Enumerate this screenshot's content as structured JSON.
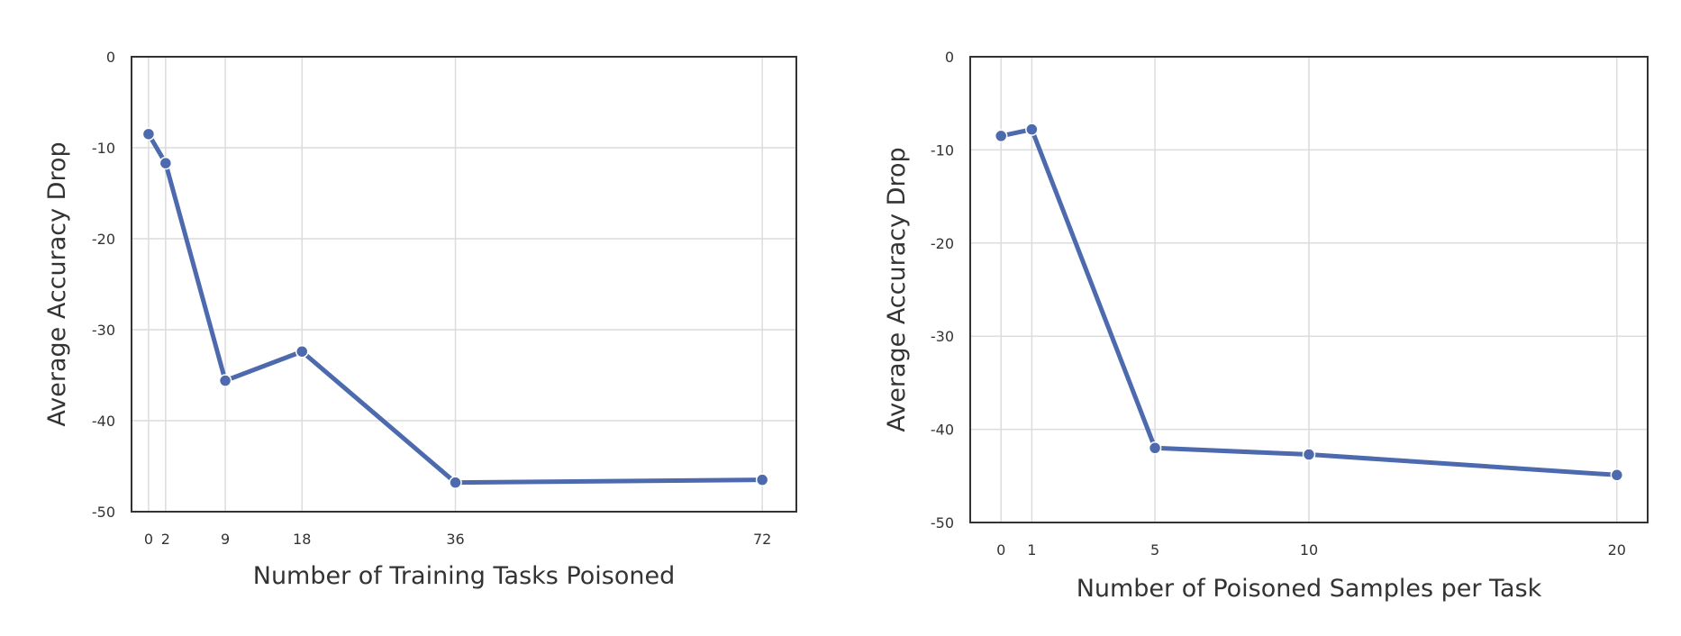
{
  "chart_data": [
    {
      "type": "line",
      "xlabel": "Number of Training Tasks Poisoned",
      "ylabel": "Average Accuracy Drop",
      "xlim": [
        -2,
        76
      ],
      "ylim": [
        -50,
        0
      ],
      "xticks": [
        0,
        2,
        9,
        18,
        36,
        72
      ],
      "yticks": [
        0,
        -10,
        -20,
        -30,
        -40,
        -50
      ],
      "grid": true,
      "series": [
        {
          "x": [
            0,
            2,
            9,
            18,
            36,
            72
          ],
          "values": [
            -8.5,
            -11.7,
            -35.6,
            -32.4,
            -46.8,
            -46.5
          ]
        }
      ]
    },
    {
      "type": "line",
      "xlabel": "Number of Poisoned Samples per Task",
      "ylabel": "Average Accuracy Drop",
      "xlim": [
        -1,
        21
      ],
      "ylim": [
        -50,
        0
      ],
      "xticks": [
        0,
        1,
        5,
        10,
        20
      ],
      "yticks": [
        0,
        -10,
        -20,
        -30,
        -40,
        -50
      ],
      "grid": true,
      "series": [
        {
          "x": [
            0,
            1,
            5,
            10,
            20
          ],
          "values": [
            -8.5,
            -7.8,
            -42.0,
            -42.7,
            -44.9
          ]
        }
      ]
    }
  ],
  "colors": {
    "line": "#4c6aad",
    "marker_edge": "#ffffff",
    "grid": "#dcdcdc",
    "frame": "#333333"
  }
}
